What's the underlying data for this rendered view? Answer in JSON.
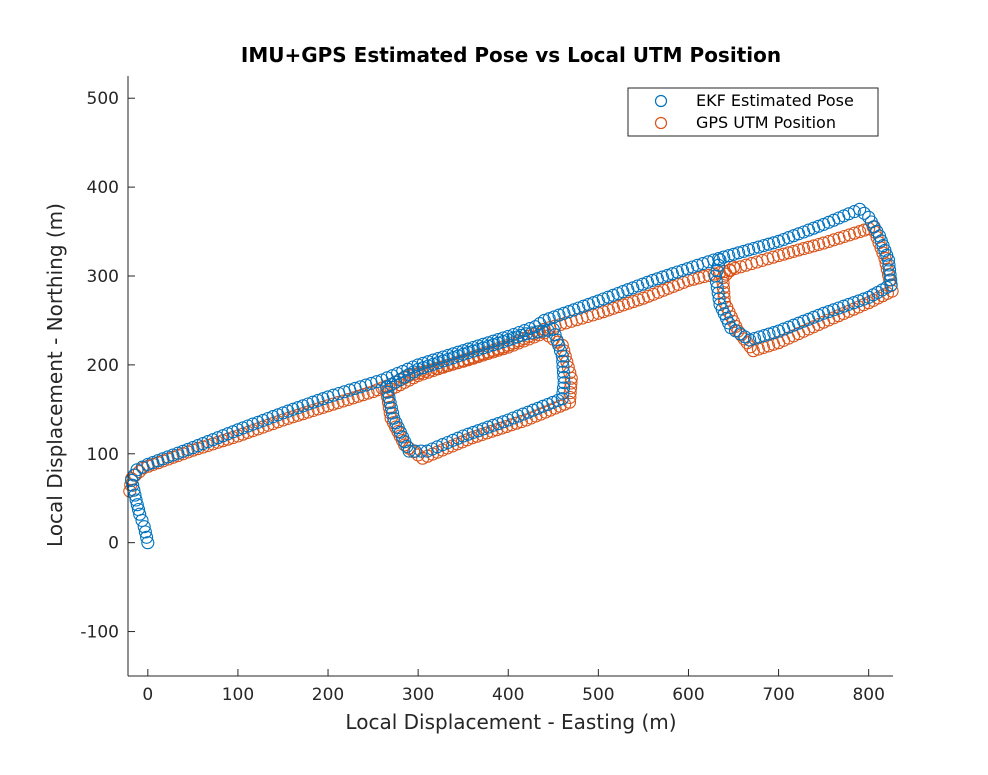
{
  "chart_data": {
    "type": "scatter",
    "title": "IMU+GPS Estimated Pose vs Local UTM Position",
    "xlabel": "Local Displacement - Easting (m)",
    "ylabel": "Local Displacement - Northing (m)",
    "xlim": [
      -22,
      827
    ],
    "ylim": [
      -150,
      525
    ],
    "xticks": [
      0,
      100,
      200,
      300,
      400,
      500,
      600,
      700,
      800
    ],
    "xtick_labels": [
      "0",
      "100",
      "200",
      "300",
      "400",
      "500",
      "600",
      "700",
      "800"
    ],
    "yticks": [
      -100,
      0,
      100,
      200,
      300,
      400,
      500
    ],
    "ytick_labels": [
      "-100",
      "0",
      "100",
      "200",
      "300",
      "400",
      "500"
    ],
    "grid": false,
    "legend": "top-right",
    "series": [
      {
        "name": "EKF Estimated Pose",
        "color": "#0072BD",
        "marker": "circle-open",
        "path": [
          [
            0,
            0
          ],
          [
            -4,
            18
          ],
          [
            -9,
            32
          ],
          [
            -13,
            48
          ],
          [
            -18,
            70
          ],
          [
            -12,
            82
          ],
          [
            0,
            88
          ],
          [
            50,
            107
          ],
          [
            100,
            127
          ],
          [
            150,
            146
          ],
          [
            200,
            164
          ],
          [
            260,
            183
          ],
          [
            300,
            200
          ],
          [
            350,
            216
          ],
          [
            400,
            232
          ],
          [
            430,
            243
          ],
          [
            440,
            250
          ],
          [
            500,
            272
          ],
          [
            560,
            295
          ],
          [
            610,
            312
          ],
          [
            628,
            318
          ],
          [
            700,
            339
          ],
          [
            750,
            358
          ],
          [
            778,
            370
          ],
          [
            790,
            375
          ],
          [
            800,
            366
          ],
          [
            812,
            345
          ],
          [
            822,
            318
          ],
          [
            825,
            290
          ],
          [
            800,
            276
          ],
          [
            750,
            258
          ],
          [
            700,
            238
          ],
          [
            668,
            228
          ],
          [
            647,
            242
          ],
          [
            635,
            268
          ],
          [
            630,
            300
          ],
          [
            635,
            318
          ]
        ],
        "path2": [
          [
            455,
            160
          ],
          [
            400,
            138
          ],
          [
            350,
            120
          ],
          [
            310,
            103
          ],
          [
            290,
            103
          ],
          [
            273,
            140
          ],
          [
            265,
            175
          ],
          [
            300,
            195
          ],
          [
            350,
            212
          ],
          [
            400,
            228
          ],
          [
            420,
            235
          ],
          [
            450,
            240
          ],
          [
            460,
            210
          ],
          [
            462,
            180
          ],
          [
            460,
            162
          ]
        ]
      },
      {
        "name": "GPS UTM Position",
        "color": "#D95319",
        "marker": "circle-open",
        "path": [
          [
            -20,
            58
          ],
          [
            -18,
            72
          ],
          [
            -5,
            84
          ],
          [
            50,
            104
          ],
          [
            100,
            120
          ],
          [
            150,
            138
          ],
          [
            200,
            154
          ],
          [
            250,
            170
          ],
          [
            270,
            178
          ],
          [
            290,
            188
          ],
          [
            350,
            204
          ],
          [
            400,
            220
          ],
          [
            440,
            236
          ],
          [
            460,
            222
          ],
          [
            470,
            185
          ],
          [
            468,
            158
          ],
          [
            420,
            138
          ],
          [
            360,
            118
          ],
          [
            305,
            95
          ],
          [
            285,
            110
          ],
          [
            270,
            140
          ],
          [
            265,
            170
          ],
          [
            300,
            188
          ],
          [
            350,
            205
          ],
          [
            400,
            222
          ],
          [
            440,
            240
          ],
          [
            500,
            258
          ],
          [
            550,
            275
          ],
          [
            600,
            295
          ],
          [
            640,
            305
          ],
          [
            700,
            323
          ],
          [
            750,
            337
          ],
          [
            790,
            350
          ],
          [
            805,
            355
          ],
          [
            818,
            320
          ],
          [
            826,
            283
          ],
          [
            800,
            270
          ],
          [
            750,
            248
          ],
          [
            700,
            225
          ],
          [
            672,
            216
          ],
          [
            655,
            238
          ],
          [
            640,
            270
          ],
          [
            638,
            298
          ],
          [
            650,
            310
          ]
        ]
      }
    ]
  }
}
